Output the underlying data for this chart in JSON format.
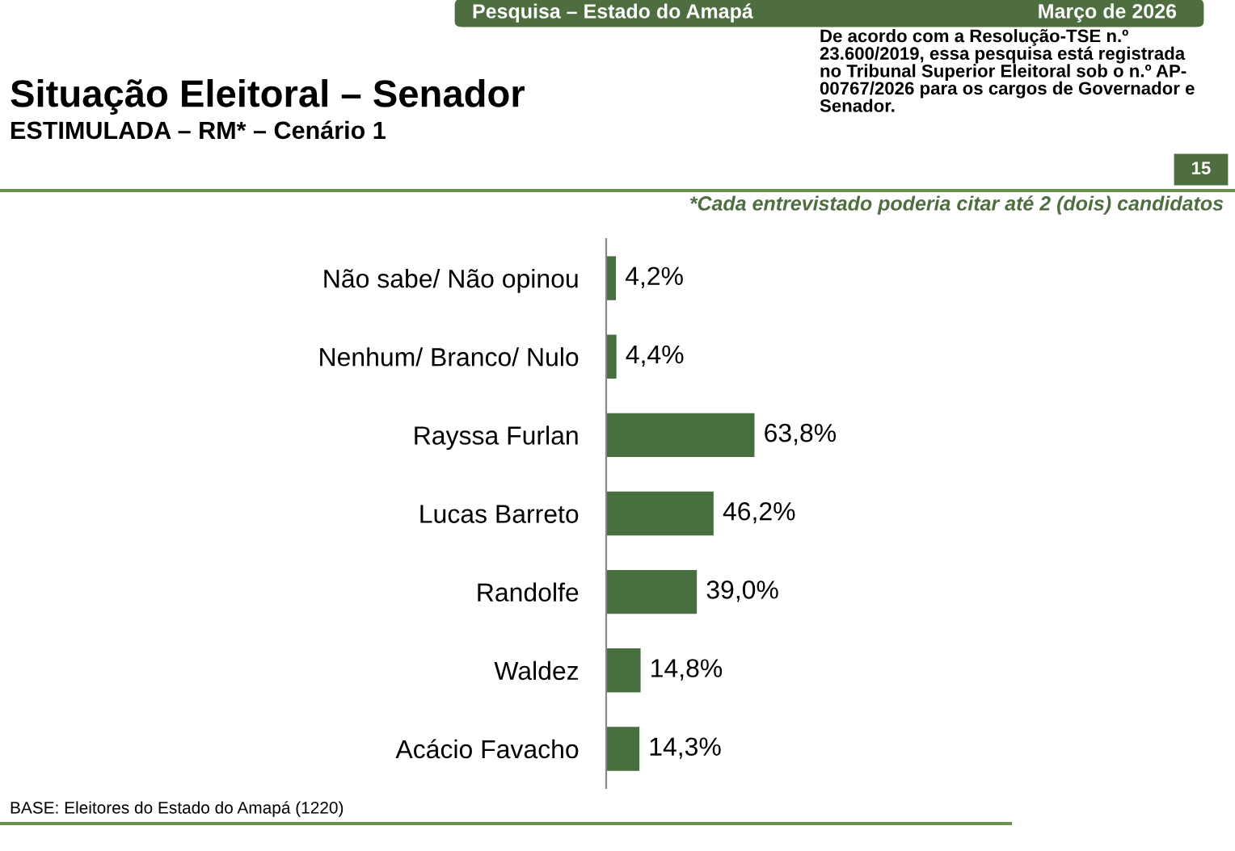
{
  "chart_data": {
    "type": "bar",
    "orientation": "horizontal",
    "title": "Situação Eleitoral – Senador",
    "subtitle": "ESTIMULADA – RM* – Cenário 1",
    "categories": [
      "Não sabe/ Não opinou",
      "Nenhum/ Branco/ Nulo",
      "Rayssa Furlan",
      "Lucas Barreto",
      "Randolfe",
      "Waldez",
      "Acácio Favacho"
    ],
    "values": [
      4.2,
      4.4,
      63.8,
      46.2,
      39.0,
      14.8,
      14.3
    ],
    "value_labels": [
      "4,2%",
      "4,4%",
      "63,8%",
      "46,2%",
      "39,0%",
      "14,8%",
      "14,3%"
    ],
    "color": "#466e3f",
    "grid": false,
    "legend": false,
    "annotations": [
      "Pesquisa – Estado do Amapá",
      "Março de 2026",
      "De acordo com a Resolução-TSE n.º\n23.600/2019, essa pesquisa está registrada\nno Tribunal Superior Eleitoral sob o n.º AP-\n00767/2026 para os cargos de Governador e\nSenador.",
      "15",
      "*Cada entrevistado poderia citar até 2 (dois) candidatos",
      "BASE: Eleitores do Estado do Amapá (1220)"
    ]
  }
}
